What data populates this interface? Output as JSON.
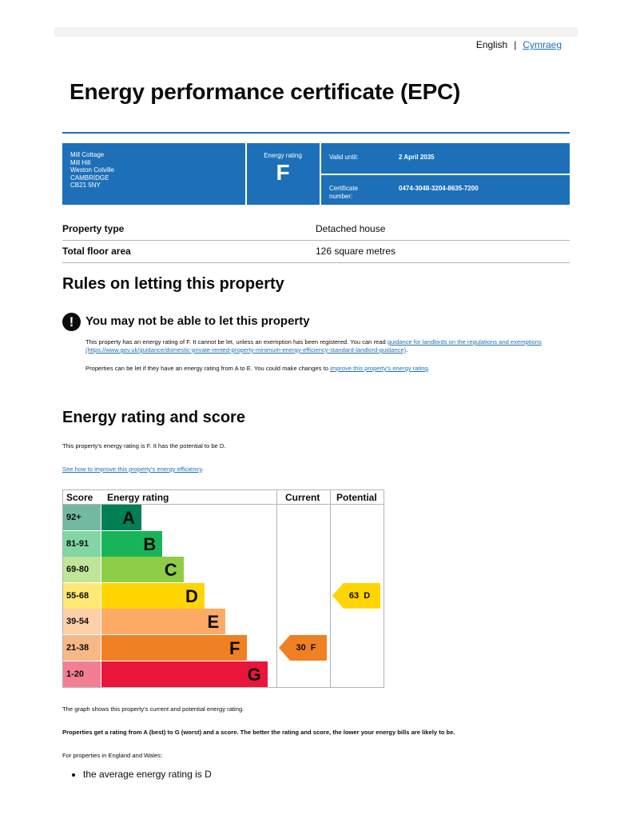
{
  "language": {
    "current": "English",
    "separator": "|",
    "other": "Cymraeg"
  },
  "title": "Energy performance certificate (EPC)",
  "summary": {
    "address_lines": [
      "Mill Cottage",
      "Mill Hill",
      "Weston Colville",
      "CAMBRIDGE",
      "CB21 5NY"
    ],
    "rating_label": "Energy rating",
    "rating": "F",
    "valid_until_label": "Valid until:",
    "valid_until": "2 April 2035",
    "certificate_label_1": "Certificate",
    "certificate_label_2": "number:",
    "certificate_number": "0474-3048-3204-8635-7200",
    "color": "#1d70b8"
  },
  "property": [
    {
      "label": "Property type",
      "value": "Detached house"
    },
    {
      "label": "Total floor area",
      "value": "126 square metres"
    }
  ],
  "letting": {
    "heading": "Rules on letting this property",
    "warning_icon": "exclamation-icon",
    "warning_title": "You may not be able to let this property",
    "p1_text": "This property has an energy rating of F. It cannot be let, unless an exemption has been registered. You can read ",
    "p1_link": "guidance for landlords on the regulations and exemptions (https://www.gov.uk/guidance/domestic-private-rented-property-minimum-energy-efficiency-standard-landlord-guidance)",
    "p1_end": ".",
    "p2_text": "Properties can be let if they have an energy rating from A to E. You could make changes to ",
    "p2_link": "improve this property's energy rating",
    "p2_end": "."
  },
  "rating_section": {
    "heading": "Energy rating and score",
    "summary": "This property's energy rating is F. It has the potential to be D.",
    "link": "See how to improve this property's energy efficiency",
    "link_end": "."
  },
  "chart_data": {
    "type": "table",
    "headers": [
      "Score",
      "Energy rating",
      "Current",
      "Potential"
    ],
    "bands": [
      {
        "score": "92+",
        "letter": "A",
        "color": "#008054"
      },
      {
        "score": "81-91",
        "letter": "B",
        "color": "#19b459"
      },
      {
        "score": "69-80",
        "letter": "C",
        "color": "#8dce46"
      },
      {
        "score": "55-68",
        "letter": "D",
        "color": "#ffd500"
      },
      {
        "score": "39-54",
        "letter": "E",
        "color": "#fcaa65"
      },
      {
        "score": "21-38",
        "letter": "F",
        "color": "#ef8023"
      },
      {
        "score": "1-20",
        "letter": "G",
        "color": "#e9153b"
      }
    ],
    "current": {
      "score": 30,
      "letter": "F",
      "label": "30  F"
    },
    "potential": {
      "score": 63,
      "letter": "D",
      "label": "63  D"
    }
  },
  "notes": {
    "graph": "The graph shows this property's current and potential energy rating.",
    "scale": "Properties get a rating from A (best) to G (worst) and a score. The better the rating and score, the lower your energy bills are likely to be.",
    "england_wales": "For properties in England and Wales:",
    "bullets": [
      "the average energy rating is D"
    ]
  }
}
